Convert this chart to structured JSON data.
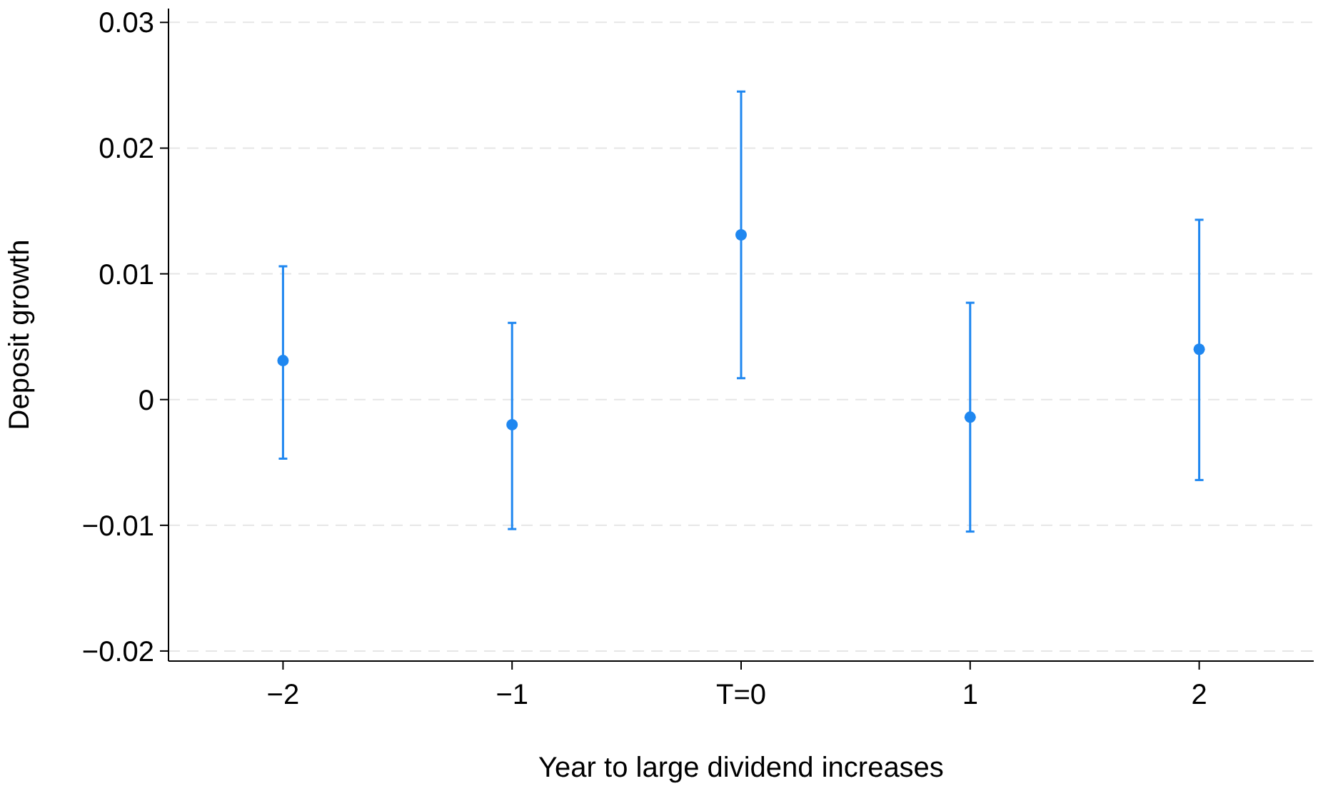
{
  "chart_data": {
    "type": "scatter",
    "xlabel": "Year to large dividend increases",
    "ylabel": "Deposit growth",
    "categories": [
      "−2",
      "−1",
      "T=0",
      "1",
      "2"
    ],
    "series": [
      {
        "color": "#1f87f0",
        "values": [
          0.0031,
          -0.002,
          0.0131,
          -0.0014,
          0.004
        ],
        "errors": [
          [
            -0.0047,
            0.0106
          ],
          [
            -0.0103,
            0.0061
          ],
          [
            0.0017,
            0.0245
          ],
          [
            -0.0105,
            0.0077
          ],
          [
            -0.0064,
            0.0143
          ]
        ]
      }
    ],
    "ylim": [
      -0.0208,
      0.0311
    ],
    "yticks": [
      {
        "value": -0.02,
        "label": "−0.02"
      },
      {
        "value": -0.01,
        "label": "−0.01"
      },
      0,
      0.01,
      0.02,
      0.03
    ],
    "grid": "y",
    "marker": "circle"
  }
}
